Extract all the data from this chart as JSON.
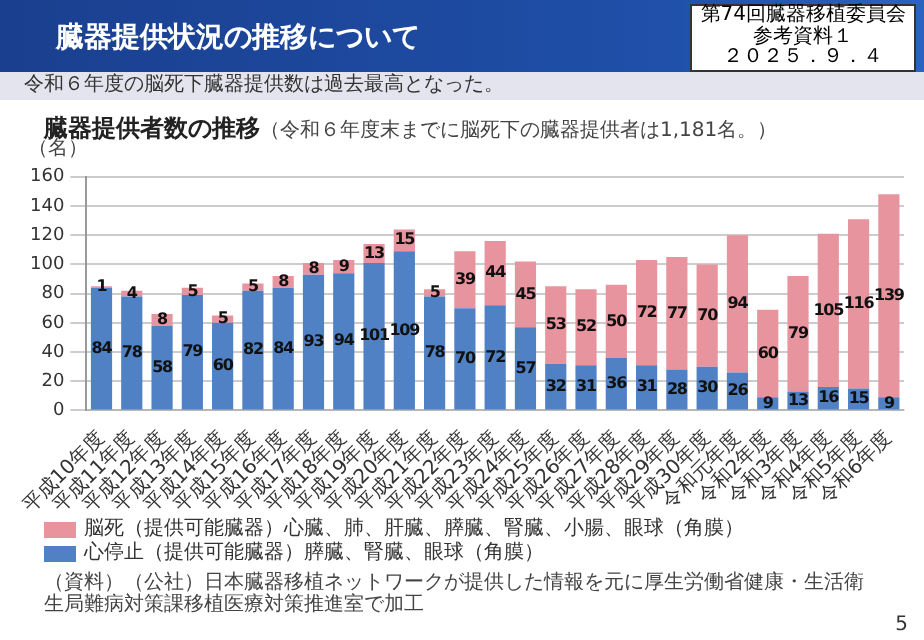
{
  "chart_data": {
    "type": "bar",
    "title": "臓器提供状況の推移について",
    "subtitle": "臓器提供者数の推移",
    "ylabel": "（名）",
    "annotations": [
      "第74回臓器移植委員会",
      "参考資料１",
      "２０２５．９．４",
      "令和６年度の脳死下臓器提供数は過去最高となった。",
      "（令和６年度末までに脳死下の臓器提供者は1,181名。）",
      "（資料）（公社）日本臓器移植ネットワークが提供した情報を元に厚生労働省健康・生活衛生局難病対策課移植医療対策推進室で加工",
      "5"
    ],
    "categories": [
      "平成10年度",
      "平成11年度",
      "平成12年度",
      "平成13年度",
      "平成14年度",
      "平成15年度",
      "平成16年度",
      "平成17年度",
      "平成18年度",
      "平成19年度",
      "平成20年度",
      "平成21年度",
      "平成22年度",
      "平成23年度",
      "平成24年度",
      "平成25年度",
      "平成26年度",
      "平成27年度",
      "平成28年度",
      "平成29年度",
      "平成30年度",
      "令和元年度",
      "令和2年度",
      "令和3年度",
      "令和4年度",
      "令和5年度",
      "令和6年度"
    ],
    "stacked": true,
    "series": [
      {
        "name": "心停止（提供可能臓器）膵臓、腎臓、眼球（角膜）",
        "color": "#4f81c4",
        "values": [
          84,
          78,
          58,
          79,
          60,
          82,
          84,
          93,
          94,
          101,
          109,
          78,
          70,
          72,
          57,
          32,
          31,
          36,
          31,
          28,
          30,
          26,
          9,
          13,
          16,
          15,
          9
        ]
      },
      {
        "name": "脳死（提供可能臓器）心臓、肺、肝臓、膵臓、腎臓、小腸、眼球（角膜）",
        "color": "#e8949f",
        "values": [
          1,
          4,
          8,
          5,
          5,
          5,
          8,
          8,
          9,
          13,
          15,
          5,
          39,
          44,
          45,
          53,
          52,
          50,
          72,
          77,
          70,
          94,
          60,
          79,
          105,
          116,
          139
        ]
      }
    ],
    "ylim": [
      0,
      160
    ],
    "yticks": [
      0,
      20,
      40,
      60,
      80,
      100,
      120,
      140,
      160
    ],
    "grid": "y",
    "legend": "bottom",
    "data_labels": true
  }
}
